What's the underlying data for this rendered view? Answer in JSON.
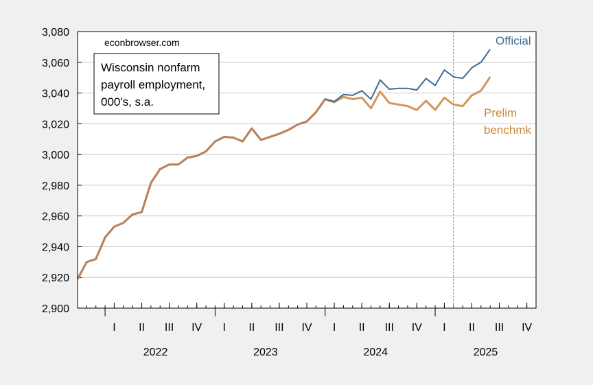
{
  "chart_data": {
    "type": "line",
    "source_note": "econbrowser.com",
    "title_lines": [
      "Wisconsin nonfarm",
      "payroll employment,",
      "000's, s.a."
    ],
    "ylim": [
      2900,
      3080
    ],
    "y_ticks": [
      2900,
      2920,
      2940,
      2960,
      2980,
      3000,
      3020,
      3040,
      3060,
      3080
    ],
    "y_tick_labels": [
      "2,900",
      "2,920",
      "2,940",
      "2,960",
      "2,980",
      "3,000",
      "3,020",
      "3,040",
      "3,060",
      "3,080"
    ],
    "x_start": "2021-10",
    "x_end": "2025-12",
    "quarter_labels": [
      {
        "date": "2022-01",
        "label": "I"
      },
      {
        "date": "2022-04",
        "label": "II"
      },
      {
        "date": "2022-07",
        "label": "III"
      },
      {
        "date": "2022-10",
        "label": "IV"
      },
      {
        "date": "2023-01",
        "label": "I"
      },
      {
        "date": "2023-04",
        "label": "II"
      },
      {
        "date": "2023-07",
        "label": "III"
      },
      {
        "date": "2023-10",
        "label": "IV"
      },
      {
        "date": "2024-01",
        "label": "I"
      },
      {
        "date": "2024-04",
        "label": "II"
      },
      {
        "date": "2024-07",
        "label": "III"
      },
      {
        "date": "2024-10",
        "label": "IV"
      },
      {
        "date": "2025-01",
        "label": "I"
      },
      {
        "date": "2025-04",
        "label": "II"
      },
      {
        "date": "2025-07",
        "label": "III"
      },
      {
        "date": "2025-10",
        "label": "IV"
      }
    ],
    "year_labels": [
      {
        "year": "2022",
        "label": "2022"
      },
      {
        "year": "2023",
        "label": "2023"
      },
      {
        "year": "2024",
        "label": "2024"
      },
      {
        "year": "2025",
        "label": "2025"
      }
    ],
    "vline_date": "2025-03",
    "vline_color": "#b8860b",
    "series": [
      {
        "name": "Official",
        "color": "#3b6a96",
        "x": [
          "2021-10",
          "2021-11",
          "2021-12",
          "2022-01",
          "2022-02",
          "2022-03",
          "2022-04",
          "2022-05",
          "2022-06",
          "2022-07",
          "2022-08",
          "2022-09",
          "2022-10",
          "2022-11",
          "2022-12",
          "2023-01",
          "2023-02",
          "2023-03",
          "2023-04",
          "2023-05",
          "2023-06",
          "2023-07",
          "2023-08",
          "2023-09",
          "2023-10",
          "2023-11",
          "2023-12",
          "2024-01",
          "2024-02",
          "2024-03",
          "2024-04",
          "2024-05",
          "2024-06",
          "2024-07",
          "2024-08",
          "2024-09",
          "2024-10",
          "2024-11",
          "2024-12",
          "2025-01",
          "2025-02",
          "2025-03",
          "2025-04",
          "2025-05",
          "2025-06",
          "2025-07"
        ],
        "values": [
          2919,
          2930,
          2932,
          2946,
          2953,
          2955.5,
          2961,
          2962.5,
          2981.5,
          2990.5,
          2993.5,
          2993.5,
          2998,
          2999,
          3002,
          3008.5,
          3011.5,
          3011,
          3008.5,
          3017,
          3009.5,
          3011.5,
          3013.5,
          3016,
          3019.5,
          3021.5,
          3027.5,
          3036,
          3034.5,
          3039,
          3038.5,
          3041.5,
          3036,
          3048.5,
          3042.5,
          3043,
          3043,
          3042,
          3049.5,
          3045,
          3055,
          3050.5,
          3049.5,
          3056.5,
          3060,
          3068.5
        ]
      },
      {
        "name": "Prelim benchmk",
        "color": "#d4955a",
        "x": [
          "2021-10",
          "2021-11",
          "2021-12",
          "2022-01",
          "2022-02",
          "2022-03",
          "2022-04",
          "2022-05",
          "2022-06",
          "2022-07",
          "2022-08",
          "2022-09",
          "2022-10",
          "2022-11",
          "2022-12",
          "2023-01",
          "2023-02",
          "2023-03",
          "2023-04",
          "2023-05",
          "2023-06",
          "2023-07",
          "2023-08",
          "2023-09",
          "2023-10",
          "2023-11",
          "2023-12",
          "2024-01",
          "2024-02",
          "2024-03",
          "2024-04",
          "2024-05",
          "2024-06",
          "2024-07",
          "2024-08",
          "2024-09",
          "2024-10",
          "2024-11",
          "2024-12",
          "2025-01",
          "2025-02",
          "2025-03",
          "2025-04",
          "2025-05",
          "2025-06",
          "2025-07"
        ],
        "values": [
          2919,
          2930,
          2932,
          2946,
          2953,
          2955.5,
          2961,
          2962.5,
          2981.5,
          2990.5,
          2993.5,
          2993.5,
          2998,
          2999,
          3002,
          3008.5,
          3011.5,
          3011,
          3008.5,
          3017,
          3009.5,
          3011.5,
          3013.5,
          3016,
          3019.5,
          3021.5,
          3027.5,
          3036,
          3034,
          3037.5,
          3036,
          3037,
          3030,
          3041,
          3033.5,
          3032.5,
          3031.5,
          3029,
          3035,
          3029,
          3037,
          3032.5,
          3031.5,
          3038.5,
          3041.5,
          3050.5
        ]
      }
    ],
    "series_label_lines": [
      [
        "Official"
      ],
      [
        "Prelim",
        "benchmk"
      ]
    ],
    "grid": "horizontal"
  }
}
